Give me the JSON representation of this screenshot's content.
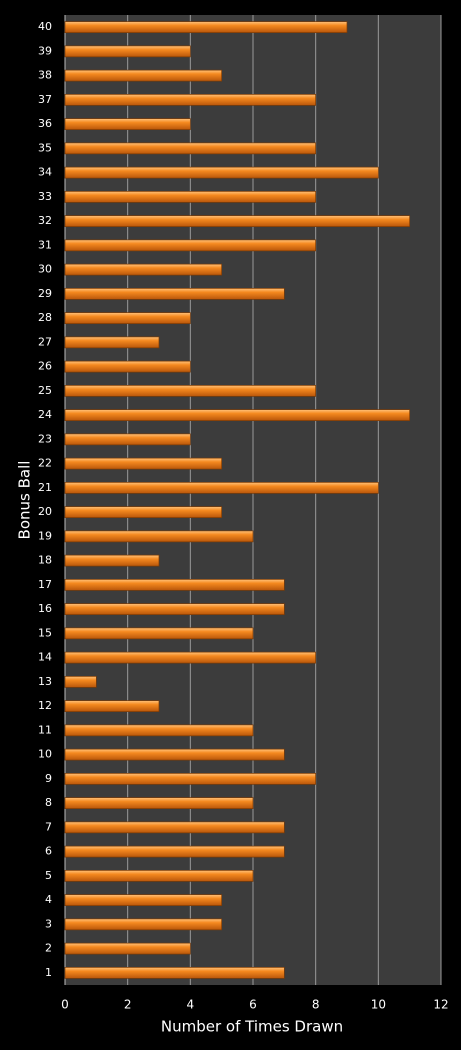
{
  "chart_data": {
    "type": "bar",
    "orientation": "horizontal",
    "x_label": "Number of Times Drawn",
    "y_label": "Bonus Ball",
    "categories": [
      "1",
      "2",
      "3",
      "4",
      "5",
      "6",
      "7",
      "8",
      "9",
      "10",
      "11",
      "12",
      "13",
      "14",
      "15",
      "16",
      "17",
      "18",
      "19",
      "20",
      "21",
      "22",
      "23",
      "24",
      "25",
      "26",
      "27",
      "28",
      "29",
      "30",
      "31",
      "32",
      "33",
      "34",
      "35",
      "36",
      "37",
      "38",
      "39",
      "40"
    ],
    "values": [
      7,
      4,
      5,
      5,
      6,
      7,
      7,
      6,
      8,
      7,
      6,
      3,
      1,
      8,
      6,
      7,
      7,
      3,
      6,
      5,
      10,
      5,
      4,
      11,
      8,
      4,
      3,
      4,
      7,
      5,
      8,
      11,
      8,
      10,
      8,
      4,
      8,
      5,
      4,
      9
    ],
    "color": "#f07f1e",
    "xlim": [
      0,
      12
    ],
    "xticks": [
      0,
      2,
      4,
      6,
      8,
      10,
      12
    ],
    "grid": true
  }
}
